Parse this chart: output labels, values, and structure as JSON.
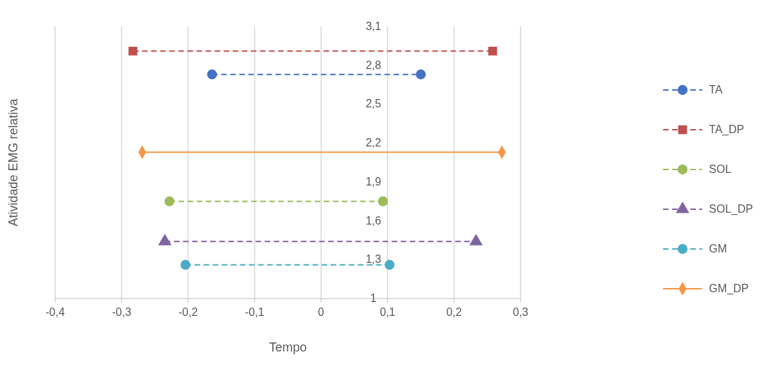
{
  "chart_data": {
    "type": "line",
    "xlabel": "Tempo",
    "ylabel": "Atividade EMG relativa",
    "xlim": [
      -0.4,
      0.3
    ],
    "xticks": [
      {
        "value": -0.4,
        "label": "-0,4"
      },
      {
        "value": -0.3,
        "label": "-0,3"
      },
      {
        "value": -0.2,
        "label": "-0,2"
      },
      {
        "value": -0.1,
        "label": "-0,1"
      },
      0,
      {
        "value": 0.1,
        "label": "0,1"
      },
      {
        "value": 0.2,
        "label": "0,2"
      },
      {
        "value": 0.3,
        "label": "0,3"
      }
    ],
    "ylim": [
      1,
      3.1
    ],
    "yticks": [
      1,
      {
        "value": 1.3,
        "label": "1,3"
      },
      {
        "value": 1.6,
        "label": "1,6"
      },
      {
        "value": 1.9,
        "label": "1,9"
      },
      {
        "value": 2.2,
        "label": "2,2"
      },
      {
        "value": 2.5,
        "label": "2,5"
      },
      {
        "value": 2.8,
        "label": "2,8"
      },
      {
        "value": 3.1,
        "label": "3,1"
      }
    ],
    "grid": "x",
    "legend": "right",
    "series": [
      {
        "name": "TA",
        "color": "#4472c4",
        "x": [
          -0.164,
          0.15
        ],
        "values": [
          2.73,
          2.73
        ],
        "marker": "circle",
        "line_style": "dashed"
      },
      {
        "name": "TA_DP",
        "color": "#c0504d",
        "x": [
          -0.283,
          0.258
        ],
        "values": [
          2.91,
          2.91
        ],
        "marker": "square",
        "line_style": "dashed"
      },
      {
        "name": "SOL",
        "color": "#9bbb59",
        "x": [
          -0.228,
          0.093
        ],
        "values": [
          1.75,
          1.75
        ],
        "marker": "circle",
        "line_style": "dashed"
      },
      {
        "name": "SOL_DP",
        "color": "#8064a2",
        "x": [
          -0.235,
          0.233
        ],
        "values": [
          1.44,
          1.44
        ],
        "marker": "triangle",
        "line_style": "dashed"
      },
      {
        "name": "GM",
        "color": "#4bacc6",
        "x": [
          -0.204,
          0.103
        ],
        "values": [
          1.26,
          1.26
        ],
        "marker": "circle",
        "line_style": "dashed"
      },
      {
        "name": "GM_DP",
        "color": "#f79646",
        "x": [
          -0.269,
          0.272
        ],
        "values": [
          2.13,
          2.13
        ],
        "marker": "diamond",
        "line_style": "solid"
      }
    ]
  }
}
